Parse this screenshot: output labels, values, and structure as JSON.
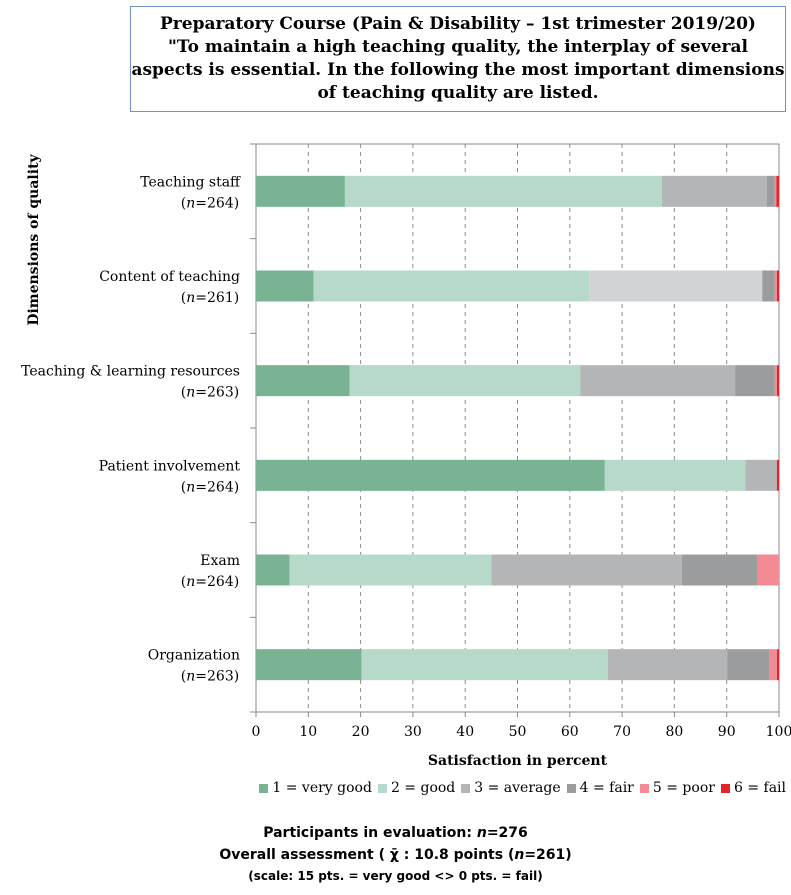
{
  "title": {
    "line1": "Preparatory Course (Pain & Disability – 1st trimester 2019/20)",
    "line2": "\"To maintain a high teaching quality, the interplay of several",
    "line3": "aspects is essential. In the following the most important dimensions",
    "line4": "of teaching quality are listed."
  },
  "footer": {
    "participants_prefix": "Participants in evaluation: ",
    "participants_n": "n",
    "participants_value": "=276",
    "overall_prefix": "Overall assessment ( ",
    "overall_symbol": "χ̄",
    "overall_middle": " : 10.8 points (",
    "overall_n": "n",
    "overall_value": "=261)",
    "scale": "(scale: 15 pts. = very good <> 0 pts. = fail)"
  },
  "chart_data": {
    "type": "bar",
    "orientation": "horizontal",
    "stacked": true,
    "ylabel": "Dimensions of quality",
    "xlabel": "Satisfaction in percent",
    "xlim": [
      0,
      100
    ],
    "xticks": [
      0,
      10,
      20,
      30,
      40,
      50,
      60,
      70,
      80,
      90,
      100
    ],
    "grid": "vertical dashed",
    "legend_position": "bottom",
    "categories": [
      {
        "name": "Teaching staff",
        "n_label": "(n=264)"
      },
      {
        "name": "Content of teaching",
        "n_label": "(n=261)"
      },
      {
        "name": "Teaching & learning resources",
        "n_label": "(n=263)"
      },
      {
        "name": "Patient involvement",
        "n_label": "(n=264)"
      },
      {
        "name": "Exam",
        "n_label": "(n=264)"
      },
      {
        "name": "Organization",
        "n_label": "(n=263)"
      }
    ],
    "series": [
      {
        "name": "1 = very good",
        "color": "#79b394",
        "values": [
          17.0,
          11.0,
          17.9,
          66.7,
          6.4,
          20.2
        ]
      },
      {
        "name": "2 = good",
        "color": "#b6d9c9",
        "values": [
          60.6,
          52.8,
          44.1,
          26.9,
          38.6,
          47.1
        ]
      },
      {
        "name": "3 = average",
        "color": "#b3b5b6",
        "values": [
          20.1,
          33.0,
          29.6,
          6.0,
          36.4,
          22.8
        ]
      },
      {
        "name": "4 = fair",
        "color": "#9a9c9d",
        "values": [
          1.5,
          2.4,
          7.6,
          0.0,
          14.4,
          8.0
        ]
      },
      {
        "name": "5 = poor",
        "color": "#f28b94",
        "values": [
          0.3,
          0.4,
          0.4,
          0.0,
          4.2,
          1.5
        ]
      },
      {
        "name": "6 = fail",
        "color": "#e3242b",
        "values": [
          0.5,
          0.4,
          0.4,
          0.4,
          0.0,
          0.4
        ]
      }
    ],
    "segment_overrides": [
      {
        "category_index": 1,
        "series_index": 2,
        "color": "#d2d3d4"
      }
    ]
  }
}
